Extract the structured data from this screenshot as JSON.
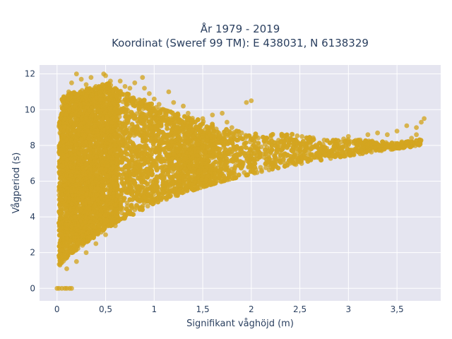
{
  "chart_data": {
    "type": "scatter",
    "title_line1": "År 1979 - 2019",
    "title_line2": "Koordinat (Sweref 99 TM): E 438031, N 6138329",
    "xlabel": "Signifikant våghöjd (m)",
    "ylabel": "Vågperiod (s)",
    "xlim": [
      -0.18,
      3.95
    ],
    "ylim": [
      -0.7,
      12.5
    ],
    "x_ticks": [
      0,
      0.5,
      1,
      1.5,
      2,
      2.5,
      3,
      3.5
    ],
    "x_tick_labels": [
      "0",
      "0,5",
      "1",
      "1,5",
      "2",
      "2,5",
      "3",
      "3,5"
    ],
    "y_ticks": [
      0,
      2,
      4,
      6,
      8,
      10,
      12
    ],
    "y_tick_labels": [
      "0",
      "2",
      "4",
      "6",
      "8",
      "10",
      "12"
    ],
    "grid": true,
    "legend": "none",
    "colors": {
      "marker": "#d4a520",
      "plot_bg": "#e5e5f0",
      "grid": "#ffffff"
    },
    "series": [
      {
        "points": [
          [
            0.0,
            0.0
          ],
          [
            0.02,
            0.0
          ],
          [
            0.05,
            0.0
          ],
          [
            0.08,
            0.0
          ],
          [
            0.1,
            0.0
          ],
          [
            0.13,
            0.0
          ],
          [
            0.15,
            0.0
          ],
          [
            0.03,
            1.3
          ],
          [
            0.05,
            1.8
          ],
          [
            0.08,
            2.5
          ],
          [
            0.1,
            3.2
          ],
          [
            0.06,
            4.0
          ],
          [
            0.04,
            5.0
          ],
          [
            0.05,
            6.2
          ],
          [
            0.07,
            7.3
          ],
          [
            0.05,
            8.5
          ],
          [
            0.08,
            9.5
          ],
          [
            0.1,
            10.2
          ],
          [
            0.12,
            11.0
          ],
          [
            0.15,
            11.5
          ],
          [
            0.2,
            12.0
          ],
          [
            0.25,
            11.7
          ],
          [
            0.3,
            11.4
          ],
          [
            0.35,
            11.8
          ],
          [
            0.4,
            11.3
          ],
          [
            0.48,
            12.0
          ],
          [
            0.5,
            11.9
          ],
          [
            0.55,
            11.6
          ],
          [
            0.65,
            11.6
          ],
          [
            0.7,
            11.3
          ],
          [
            0.75,
            11.2
          ],
          [
            0.8,
            11.5
          ],
          [
            0.88,
            11.8
          ],
          [
            0.9,
            11.2
          ],
          [
            0.95,
            10.9
          ],
          [
            1.0,
            10.6
          ],
          [
            1.05,
            10.3
          ],
          [
            1.1,
            10.0
          ],
          [
            1.15,
            11.0
          ],
          [
            1.2,
            10.4
          ],
          [
            1.3,
            10.2
          ],
          [
            1.35,
            9.8
          ],
          [
            1.5,
            9.5
          ],
          [
            1.6,
            9.7
          ],
          [
            1.7,
            9.8
          ],
          [
            1.75,
            9.3
          ],
          [
            1.8,
            9.0
          ],
          [
            1.9,
            8.7
          ],
          [
            1.95,
            10.4
          ],
          [
            2.0,
            10.5
          ],
          [
            2.05,
            8.5
          ],
          [
            2.2,
            8.4
          ],
          [
            2.3,
            8.2
          ],
          [
            2.5,
            8.1
          ],
          [
            2.6,
            8.3
          ],
          [
            2.75,
            8.3
          ],
          [
            3.0,
            8.5
          ],
          [
            3.1,
            8.3
          ],
          [
            3.2,
            8.6
          ],
          [
            3.3,
            8.7
          ],
          [
            3.4,
            8.6
          ],
          [
            3.5,
            8.8
          ],
          [
            3.55,
            8.2
          ],
          [
            3.6,
            9.1
          ],
          [
            3.65,
            8.4
          ],
          [
            3.7,
            9.0
          ],
          [
            3.75,
            9.3
          ],
          [
            3.78,
            9.5
          ],
          [
            3.7,
            8.6
          ],
          [
            0.1,
            1.1
          ],
          [
            0.2,
            1.5
          ],
          [
            0.3,
            2.0
          ],
          [
            0.4,
            2.5
          ],
          [
            0.5,
            3.0
          ],
          [
            0.6,
            3.5
          ],
          [
            0.7,
            4.0
          ],
          [
            0.8,
            4.4
          ],
          [
            0.9,
            4.8
          ],
          [
            1.0,
            5.0
          ],
          [
            1.2,
            5.4
          ],
          [
            1.4,
            5.8
          ],
          [
            1.6,
            6.1
          ],
          [
            1.8,
            6.4
          ],
          [
            2.0,
            6.6
          ],
          [
            2.2,
            6.8
          ],
          [
            2.4,
            7.0
          ],
          [
            2.6,
            7.2
          ],
          [
            2.8,
            7.4
          ],
          [
            3.0,
            7.5
          ],
          [
            3.2,
            7.7
          ],
          [
            3.4,
            7.9
          ],
          [
            3.6,
            8.2
          ],
          [
            0.2,
            3.0
          ],
          [
            0.3,
            4.5
          ],
          [
            0.4,
            6.0
          ],
          [
            0.5,
            7.0
          ],
          [
            0.6,
            8.0
          ],
          [
            0.7,
            9.0
          ],
          [
            0.8,
            9.6
          ],
          [
            0.25,
            5.5
          ],
          [
            0.35,
            6.5
          ],
          [
            0.45,
            7.8
          ],
          [
            1.0,
            7.0
          ],
          [
            1.2,
            7.5
          ],
          [
            1.5,
            7.2
          ],
          [
            1.7,
            7.0
          ],
          [
            2.0,
            7.4
          ],
          [
            2.3,
            7.6
          ],
          [
            2.5,
            7.7
          ],
          [
            2.7,
            7.8
          ],
          [
            2.9,
            8.0
          ],
          [
            3.1,
            8.1
          ],
          [
            0.6,
            10.0
          ],
          [
            0.5,
            10.5
          ],
          [
            0.3,
            9.5
          ],
          [
            0.2,
            8.5
          ],
          [
            0.15,
            7.5
          ],
          [
            0.12,
            6.5
          ],
          [
            0.1,
            5.0
          ],
          [
            0.08,
            4.5
          ],
          [
            0.1,
            2.8
          ],
          [
            0.3,
            3.5
          ],
          [
            0.9,
            9.0
          ],
          [
            1.1,
            9.4
          ],
          [
            1.3,
            8.8
          ],
          [
            1.4,
            8.5
          ],
          [
            1.6,
            8.3
          ],
          [
            1.85,
            8.6
          ],
          [
            1.0,
            8.2
          ],
          [
            0.85,
            7.5
          ],
          [
            0.7,
            6.5
          ],
          [
            0.55,
            5.5
          ]
        ]
      }
    ]
  }
}
